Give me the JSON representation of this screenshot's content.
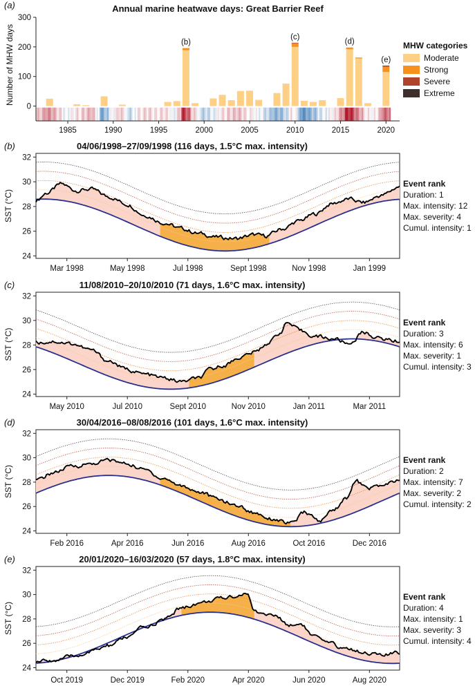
{
  "figure": "mhw-great-barrier-reef",
  "colors": {
    "moderate": "#fdd085",
    "strong": "#f7911e",
    "severe": "#b0432c",
    "extreme": "#3e2f2c",
    "climatology": "#27308f",
    "sst": "#000000",
    "fill_warm": "#f6b04a",
    "fill_light": "#fbd5c9"
  },
  "chart_data": [
    {
      "panel": "(a)",
      "type": "bar",
      "title": "Annual marine heatwave days: Great Barrier Reef",
      "ylabel": "Number of MHW days",
      "xlabel": "",
      "ylim": [
        -50,
        300
      ],
      "yticks": [
        0,
        100,
        200,
        300
      ],
      "xticks": [
        1985,
        1990,
        1995,
        2000,
        2005,
        2010,
        2015,
        2020
      ],
      "x_range": [
        1981.5,
        2021.5
      ],
      "legend": {
        "title": "MHW categories",
        "placement": "right",
        "entries": [
          "Moderate",
          "Strong",
          "Severe",
          "Extreme"
        ]
      },
      "years": [
        1982,
        1983,
        1984,
        1985,
        1986,
        1987,
        1988,
        1989,
        1990,
        1991,
        1992,
        1993,
        1994,
        1995,
        1996,
        1997,
        1998,
        1999,
        2000,
        2001,
        2002,
        2003,
        2004,
        2005,
        2006,
        2007,
        2008,
        2009,
        2010,
        2011,
        2012,
        2013,
        2014,
        2015,
        2016,
        2017,
        2018,
        2019,
        2020
      ],
      "series": [
        {
          "name": "Moderate",
          "values": [
            0,
            25,
            0,
            0,
            6,
            3,
            0,
            33,
            0,
            5,
            0,
            0,
            0,
            0,
            14,
            17,
            189,
            10,
            0,
            26,
            38,
            20,
            51,
            52,
            21,
            0,
            44,
            76,
            200,
            18,
            14,
            20,
            0,
            27,
            192,
            161,
            10,
            0,
            115
          ]
        },
        {
          "name": "Strong",
          "values": [
            0,
            0,
            0,
            0,
            0,
            0,
            0,
            0,
            0,
            0,
            0,
            0,
            0,
            0,
            0,
            0,
            7,
            0,
            0,
            0,
            0,
            0,
            0,
            0,
            0,
            0,
            0,
            0,
            12,
            0,
            0,
            0,
            0,
            0,
            6,
            3,
            0,
            0,
            18
          ]
        },
        {
          "name": "Severe",
          "values": [
            0,
            0,
            0,
            0,
            0,
            0,
            0,
            0,
            0,
            0,
            0,
            0,
            0,
            0,
            0,
            0,
            0,
            0,
            0,
            0,
            0,
            0,
            0,
            0,
            0,
            0,
            0,
            0,
            2,
            0,
            0,
            0,
            0,
            0,
            0,
            0,
            0,
            0,
            4
          ]
        },
        {
          "name": "Extreme",
          "values": [
            0,
            0,
            0,
            0,
            0,
            0,
            0,
            0,
            0,
            0,
            0,
            0,
            0,
            0,
            0,
            0,
            0,
            0,
            0,
            0,
            0,
            0,
            0,
            0,
            0,
            0,
            0,
            0,
            0,
            0,
            0,
            0,
            0,
            0,
            0,
            0,
            0,
            0,
            0
          ]
        }
      ],
      "annual_sst_anomaly_stripes": [
        0.2,
        0.5,
        0.3,
        -0.1,
        0.1,
        0.2,
        0.4,
        -0.6,
        -0.1,
        0.3,
        -0.3,
        0.1,
        0.2,
        0.1,
        0.2,
        -0.2,
        0.9,
        0.3,
        -0.3,
        -0.2,
        0.1,
        0.2,
        0.3,
        0.1,
        0.0,
        -0.2,
        -0.5,
        -0.4,
        0.2,
        -0.7,
        -0.5,
        -0.2,
        0.0,
        0.2,
        1.0,
        0.6,
        0.1,
        0.0,
        0.6
      ],
      "annotations": [
        {
          "label": "(b)",
          "year": 1998
        },
        {
          "label": "(c)",
          "year": 2010
        },
        {
          "label": "(d)",
          "year": 2016
        },
        {
          "label": "(e)",
          "year": 2020
        }
      ]
    },
    {
      "panel": "(b)",
      "type": "line",
      "title": "04/06/1998–27/09/1998 (116 days, 1.5°C max. intensity)",
      "ylabel": "SST (°C)",
      "ylim": [
        23.8,
        32.3
      ],
      "yticks": [
        24,
        26,
        28,
        30,
        32
      ],
      "xticks": [
        "Mar 1998",
        "May 1998",
        "Jul 1998",
        "Sept 1998",
        "Nov 1998",
        "Jan 1999"
      ],
      "clim": {
        "mean": 26.5,
        "amp": 2.1,
        "trough": 0.52
      },
      "sst_nodes": [
        [
          0,
          28.5
        ],
        [
          0.03,
          29.1
        ],
        [
          0.07,
          29.8
        ],
        [
          0.11,
          29.3
        ],
        [
          0.15,
          29.4
        ],
        [
          0.2,
          28.8
        ],
        [
          0.25,
          28.2
        ],
        [
          0.3,
          27.3
        ],
        [
          0.35,
          26.7
        ],
        [
          0.4,
          26.2
        ],
        [
          0.45,
          25.8
        ],
        [
          0.5,
          25.5
        ],
        [
          0.55,
          25.4
        ],
        [
          0.6,
          25.7
        ],
        [
          0.63,
          25.6
        ],
        [
          0.68,
          26.2
        ],
        [
          0.72,
          26.8
        ],
        [
          0.77,
          27.4
        ],
        [
          0.81,
          28.2
        ],
        [
          0.86,
          28.6
        ],
        [
          0.9,
          28.3
        ],
        [
          0.95,
          28.9
        ],
        [
          1,
          29.6
        ]
      ],
      "event_window": [
        0.34,
        0.64
      ],
      "rank": {
        "heading": "Event rank",
        "duration": "Duration: 1",
        "max_intensity": "Max. intensity: 12",
        "max_severity": "Max. severity: 4",
        "cumul_intensity": "Cumul. intensity: 1"
      }
    },
    {
      "panel": "(c)",
      "type": "line",
      "title": "11/08/2010–20/10/2010 (71 days, 1.6°C max. intensity)",
      "ylabel": "SST (°C)",
      "ylim": [
        23.8,
        32.3
      ],
      "yticks": [
        24,
        26,
        28,
        30,
        32
      ],
      "xticks": [
        "May 2010",
        "Jul 2010",
        "Sept 2010",
        "Nov 2010",
        "Jan 2011",
        "Mar 2011"
      ],
      "clim": {
        "mean": 26.45,
        "amp": 2.05,
        "trough": 0.37
      },
      "sst_nodes": [
        [
          0,
          28.2
        ],
        [
          0.05,
          28.3
        ],
        [
          0.1,
          28.1
        ],
        [
          0.15,
          27.6
        ],
        [
          0.2,
          26.7
        ],
        [
          0.25,
          26.0
        ],
        [
          0.3,
          25.6
        ],
        [
          0.35,
          25.3
        ],
        [
          0.4,
          25.0
        ],
        [
          0.45,
          25.3
        ],
        [
          0.48,
          26.0
        ],
        [
          0.52,
          26.4
        ],
        [
          0.56,
          27.0
        ],
        [
          0.6,
          27.4
        ],
        [
          0.64,
          28.2
        ],
        [
          0.67,
          29.0
        ],
        [
          0.69,
          29.8
        ],
        [
          0.73,
          29.1
        ],
        [
          0.77,
          28.7
        ],
        [
          0.82,
          28.5
        ],
        [
          0.86,
          28.1
        ],
        [
          0.9,
          29.0
        ],
        [
          0.95,
          28.5
        ],
        [
          1,
          28.3
        ]
      ],
      "event_window": [
        0.42,
        0.6
      ],
      "rank": {
        "heading": "Event rank",
        "duration": "Duration: 3",
        "max_intensity": "Max. intensity: 6",
        "max_severity": "Max. severity: 1",
        "cumul_intensity": "Cumul. intensity: 3"
      }
    },
    {
      "panel": "(d)",
      "type": "line",
      "title": "30/04/2016–08/08/2016 (101 days, 1.6°C max. intensity)",
      "ylabel": "SST (°C)",
      "ylim": [
        23.8,
        32.3
      ],
      "yticks": [
        24,
        26,
        28,
        30,
        32
      ],
      "xticks": [
        "Feb 2016",
        "Apr 2016",
        "Jun 2016",
        "Aug 2016",
        "Oct 2016",
        "Dec 2016"
      ],
      "clim": {
        "mean": 26.45,
        "amp": 2.1,
        "trough": 0.7
      },
      "sst_nodes": [
        [
          0,
          28.1
        ],
        [
          0.05,
          28.8
        ],
        [
          0.1,
          29.3
        ],
        [
          0.15,
          29.5
        ],
        [
          0.2,
          29.8
        ],
        [
          0.25,
          29.5
        ],
        [
          0.3,
          29.0
        ],
        [
          0.35,
          28.3
        ],
        [
          0.4,
          27.7
        ],
        [
          0.45,
          27.2
        ],
        [
          0.5,
          26.6
        ],
        [
          0.55,
          26.1
        ],
        [
          0.6,
          25.5
        ],
        [
          0.65,
          25.0
        ],
        [
          0.7,
          24.6
        ],
        [
          0.74,
          25.5
        ],
        [
          0.78,
          24.8
        ],
        [
          0.82,
          25.8
        ],
        [
          0.85,
          26.6
        ],
        [
          0.88,
          28.1
        ],
        [
          0.91,
          27.5
        ],
        [
          0.95,
          27.7
        ],
        [
          1,
          28.1
        ]
      ],
      "event_window": [
        0.34,
        0.7
      ],
      "rank": {
        "heading": "Event rank",
        "duration": "Duration: 2",
        "max_intensity": "Max. intensity: 7",
        "max_severity": "Max. severity: 2",
        "cumul_intensity": "Cumul. intensity: 2"
      }
    },
    {
      "panel": "(e)",
      "type": "line",
      "title": "20/01/2020–16/03/2020 (57 days, 1.8°C max. intensity)",
      "ylabel": "SST (°C)",
      "ylim": [
        23.8,
        32.3
      ],
      "yticks": [
        24,
        26,
        28,
        30,
        32
      ],
      "xticks": [
        "Oct 2019",
        "Dec 2019",
        "Feb 2020",
        "Apr 2020",
        "Jun 2020",
        "Aug 2020"
      ],
      "clim": {
        "mean": 26.45,
        "amp": 2.1,
        "trough": 0.98
      },
      "sst_nodes": [
        [
          0,
          24.5
        ],
        [
          0.05,
          24.6
        ],
        [
          0.1,
          24.9
        ],
        [
          0.15,
          25.3
        ],
        [
          0.2,
          25.8
        ],
        [
          0.25,
          26.5
        ],
        [
          0.3,
          27.3
        ],
        [
          0.35,
          27.9
        ],
        [
          0.4,
          28.9
        ],
        [
          0.45,
          29.3
        ],
        [
          0.5,
          29.6
        ],
        [
          0.55,
          29.9
        ],
        [
          0.58,
          30.1
        ],
        [
          0.6,
          28.6
        ],
        [
          0.65,
          28.3
        ],
        [
          0.7,
          27.5
        ],
        [
          0.73,
          27.6
        ],
        [
          0.76,
          26.6
        ],
        [
          0.8,
          26.0
        ],
        [
          0.85,
          25.6
        ],
        [
          0.9,
          25.3
        ],
        [
          0.95,
          25.0
        ],
        [
          1,
          25.2
        ]
      ],
      "event_window": [
        0.4,
        0.6
      ],
      "rank": {
        "heading": "Event rank",
        "duration": "Duration: 4",
        "max_intensity": "Max. intensity: 1",
        "max_severity": "Max. severity: 3",
        "cumul_intensity": "Cumul. intensity: 4"
      }
    }
  ]
}
